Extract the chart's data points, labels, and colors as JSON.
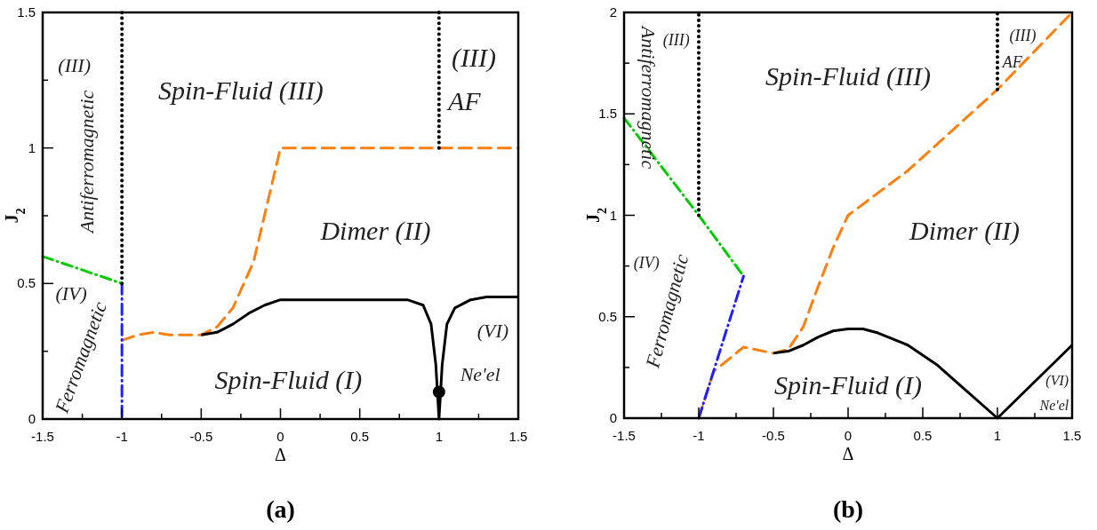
{
  "chart_data": [
    {
      "type": "line",
      "title": "(a)",
      "xlabel": "Δ",
      "ylabel": "J$_{2}$",
      "xlim": [
        -1.5,
        1.5
      ],
      "ylim": [
        0,
        1.5
      ],
      "xticks": [
        -1.5,
        {
          "value": -1.25,
          "label": null
        },
        -1,
        {
          "value": -0.75,
          "label": null
        },
        -0.5,
        {
          "value": -0.25,
          "label": null
        },
        0,
        {
          "value": 0.25,
          "label": null
        },
        0.5,
        {
          "value": 0.75,
          "label": null
        },
        1,
        {
          "value": 1.25,
          "label": null
        },
        1.5
      ],
      "yticks": [
        0,
        {
          "value": 0.25,
          "label": null
        },
        0.5,
        {
          "value": 0.75,
          "label": null
        },
        1,
        {
          "value": 1.25,
          "label": null
        },
        1.5
      ],
      "series": [
        {
          "type": "line",
          "color": "#ff7f0e",
          "line_style": "dashed",
          "x": [
            -1,
            -0.9,
            -0.8,
            -0.7,
            -0.6,
            -0.5,
            -0.4,
            -0.3,
            -0.17,
            0,
            0.5,
            1,
            1.5
          ],
          "values": [
            0.29,
            0.31,
            0.32,
            0.31,
            0.31,
            0.31,
            0.34,
            0.41,
            0.58,
            1.0,
            1.0,
            1.0,
            1.0
          ]
        },
        {
          "type": "line",
          "color": "#000000",
          "line_style": "solid",
          "x": [
            -0.5,
            -0.4,
            -0.3,
            -0.2,
            -0.1,
            0,
            0.5,
            0.8,
            0.9,
            0.95,
            0.98,
            1,
            1.02,
            1.05,
            1.1,
            1.2,
            1.3,
            1.5
          ],
          "values": [
            0.31,
            0.32,
            0.35,
            0.39,
            0.42,
            0.44,
            0.44,
            0.44,
            0.42,
            0.35,
            0.2,
            0.0,
            0.2,
            0.35,
            0.41,
            0.44,
            0.45,
            0.45
          ]
        },
        {
          "type": "scatter",
          "color": "#000000",
          "marker": "circle",
          "x": [
            1
          ],
          "values": [
            0.1
          ]
        },
        {
          "type": "line",
          "color": "#00cc00",
          "line_style": "dashdot",
          "x": [
            -1.5,
            -1
          ],
          "values": [
            0.6,
            0.5
          ]
        },
        {
          "type": "line",
          "color": "#1f1fff",
          "line_style": "dashdot",
          "x": [
            -1,
            -1
          ],
          "values": [
            0.5,
            0
          ]
        },
        {
          "type": "line",
          "color": "#000000",
          "line_style": "dotted",
          "x": [
            -1,
            -1
          ],
          "values": [
            0.5,
            1.5
          ]
        },
        {
          "type": "line",
          "color": "#000000",
          "line_style": "dotted",
          "x": [
            1,
            1
          ],
          "values": [
            1.0,
            1.5
          ]
        }
      ],
      "annotations": [
        "(III)",
        "Spin-Fluid  (III)",
        "(III)",
        "AF",
        "Antiferromagnetic",
        "Dimer  (II)",
        "(IV)",
        "Ferromagnetic",
        "Spin-Fluid  (I)",
        "(VI)",
        "Ne'el"
      ]
    },
    {
      "type": "line",
      "title": "(b)",
      "xlabel": "Δ",
      "ylabel": "J$_{2}$",
      "xlim": [
        -1.5,
        1.5
      ],
      "ylim": [
        0,
        2
      ],
      "xticks": [
        -1.5,
        {
          "value": -1.25,
          "label": null
        },
        -1,
        {
          "value": -0.75,
          "label": null
        },
        -0.5,
        {
          "value": -0.25,
          "label": null
        },
        0,
        {
          "value": 0.25,
          "label": null
        },
        0.5,
        {
          "value": 0.75,
          "label": null
        },
        1,
        {
          "value": 1.25,
          "label": null
        },
        1.5
      ],
      "yticks": [
        0,
        {
          "value": 0.25,
          "label": null
        },
        0.5,
        {
          "value": 0.75,
          "label": null
        },
        1,
        {
          "value": 1.25,
          "label": null
        },
        1.5,
        {
          "value": 1.75,
          "label": null
        },
        2
      ],
      "series": [
        {
          "type": "line",
          "color": "#ff7f0e",
          "line_style": "dashed",
          "x": [
            -1,
            -0.9,
            -0.7,
            -0.5,
            -0.4,
            -0.3,
            -0.2,
            -0.1,
            0,
            0.4,
            0.7,
            1,
            1.5
          ],
          "values": [
            0,
            0.23,
            0.35,
            0.32,
            0.34,
            0.45,
            0.65,
            0.84,
            1.0,
            1.22,
            1.42,
            1.62,
            2.0
          ]
        },
        {
          "type": "line",
          "color": "#000000",
          "line_style": "solid",
          "x": [
            -0.5,
            -0.4,
            -0.3,
            -0.2,
            -0.1,
            0,
            0.1,
            0.2,
            0.4,
            0.6,
            0.8,
            1,
            1.5
          ],
          "values": [
            0.32,
            0.33,
            0.36,
            0.4,
            0.43,
            0.44,
            0.44,
            0.42,
            0.36,
            0.26,
            0.13,
            0,
            0.36
          ]
        },
        {
          "type": "line",
          "color": "#00cc00",
          "line_style": "dashdot",
          "x": [
            -1.5,
            -1,
            -0.7
          ],
          "values": [
            1.48,
            1.0,
            0.7
          ]
        },
        {
          "type": "line",
          "color": "#1f1fff",
          "line_style": "dashdot",
          "x": [
            -1,
            -0.7
          ],
          "values": [
            0,
            0.7
          ]
        },
        {
          "type": "line",
          "color": "#000000",
          "line_style": "dotted",
          "x": [
            -1,
            -1
          ],
          "values": [
            1.0,
            2.0
          ]
        },
        {
          "type": "line",
          "color": "#000000",
          "line_style": "dotted",
          "x": [
            1,
            1
          ],
          "values": [
            1.62,
            2.0
          ]
        }
      ],
      "annotations": [
        "(III)",
        "Spin-Fluid  (III)",
        "(III)",
        "AF",
        "Antiferromagnetic",
        "Dimer  (II)",
        "(IV)",
        "Ferromagnetic",
        "Spin-Fluid  (I)",
        "(VI)",
        "Ne'el"
      ]
    }
  ]
}
